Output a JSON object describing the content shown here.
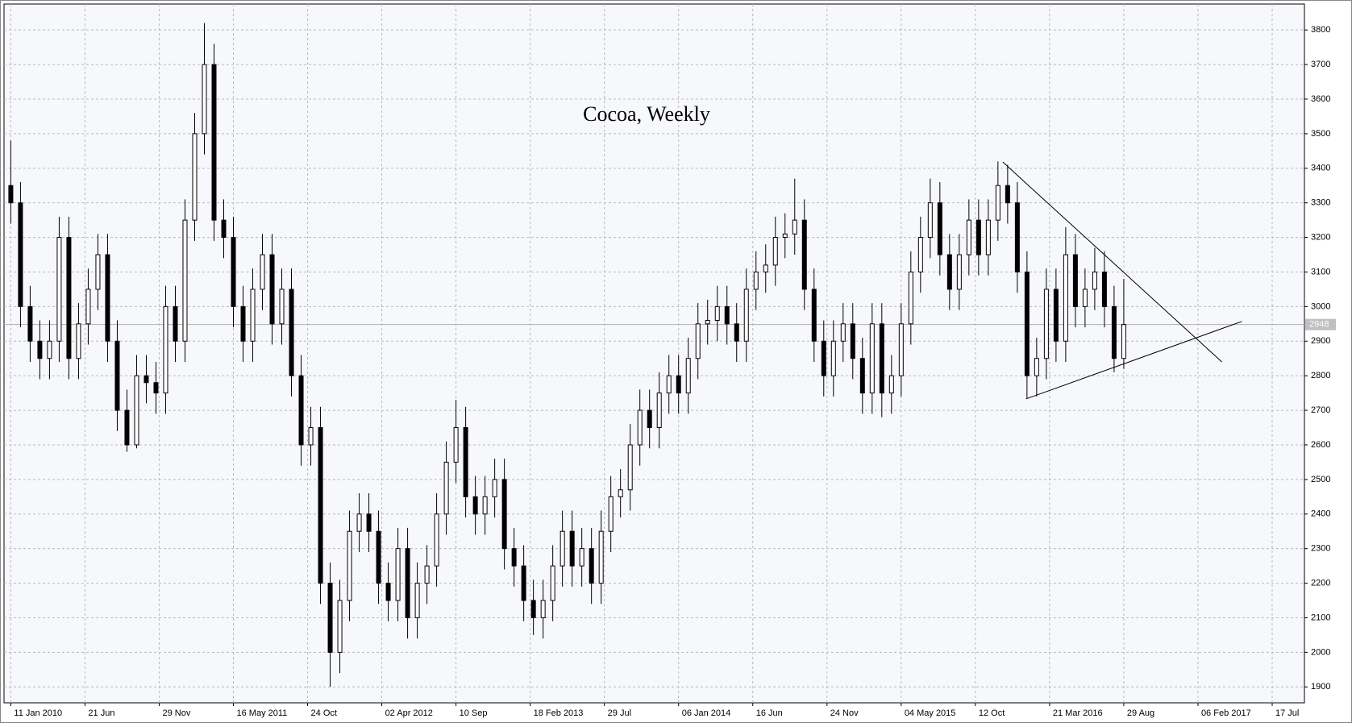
{
  "chart_data": {
    "type": "candlestick",
    "title": "Cocoa, Weekly",
    "x": [
      0,
      3,
      6,
      9,
      12,
      15,
      18,
      21,
      24,
      27,
      30,
      33,
      36,
      39,
      42,
      45,
      48,
      51,
      54,
      57,
      60,
      63,
      66,
      69,
      72,
      75,
      78,
      81,
      84,
      87,
      90,
      93,
      96,
      99,
      102,
      105,
      108,
      111,
      114,
      117,
      120,
      123,
      126,
      129,
      132,
      135,
      138,
      141,
      144,
      147,
      150,
      153,
      156,
      159,
      162,
      165,
      168,
      171,
      174,
      177,
      180,
      183,
      186,
      189,
      192,
      195,
      198,
      201,
      204,
      207,
      210,
      213,
      216,
      219,
      222,
      225,
      228,
      231,
      234,
      237,
      240,
      243,
      246,
      249,
      252,
      255,
      258,
      261,
      264,
      267,
      270,
      273,
      276,
      279,
      282,
      285,
      288,
      291,
      294,
      297,
      300,
      303,
      306,
      309,
      312,
      315,
      318,
      321,
      324,
      327,
      330,
      333,
      336,
      339,
      342,
      345
    ],
    "open": [
      3350,
      3300,
      3000,
      2900,
      2850,
      2900,
      3200,
      2850,
      2950,
      3050,
      3150,
      2900,
      2700,
      2600,
      2800,
      2780,
      2750,
      3000,
      2900,
      3250,
      3500,
      3700,
      3250,
      3200,
      3000,
      2900,
      3050,
      3150,
      2950,
      3050,
      2800,
      2600,
      2650,
      2200,
      2000,
      2150,
      2350,
      2400,
      2350,
      2200,
      2150,
      2300,
      2100,
      2200,
      2250,
      2400,
      2550,
      2650,
      2450,
      2400,
      2450,
      2500,
      2300,
      2250,
      2150,
      2100,
      2150,
      2250,
      2350,
      2250,
      2300,
      2200,
      2350,
      2450,
      2470,
      2600,
      2700,
      2650,
      2750,
      2800,
      2750,
      2850,
      2950,
      2960,
      3000,
      2950,
      2900,
      3050,
      3100,
      3120,
      3200,
      3210,
      3250,
      3050,
      2900,
      2800,
      2900,
      2950,
      2850,
      2750,
      2950,
      2750,
      2800,
      2950,
      3100,
      3200,
      3300,
      3150,
      3050,
      3150,
      3250,
      3150,
      3250,
      3350,
      3300,
      3100,
      2800,
      2850,
      3050,
      2900,
      3150,
      3000,
      3050,
      3100,
      3000,
      2850
    ],
    "high": [
      3480,
      3360,
      3060,
      2960,
      2960,
      3260,
      3260,
      3010,
      3110,
      3210,
      3210,
      2960,
      2760,
      2860,
      2860,
      2840,
      3060,
      3060,
      3310,
      3560,
      3820,
      3760,
      3310,
      3260,
      3060,
      3110,
      3210,
      3210,
      3110,
      3110,
      2860,
      2710,
      2710,
      2260,
      2210,
      2410,
      2460,
      2460,
      2410,
      2260,
      2360,
      2360,
      2260,
      2310,
      2460,
      2610,
      2730,
      2710,
      2510,
      2510,
      2560,
      2560,
      2360,
      2310,
      2210,
      2210,
      2310,
      2410,
      2410,
      2360,
      2360,
      2410,
      2510,
      2530,
      2660,
      2760,
      2760,
      2810,
      2860,
      2860,
      2910,
      3010,
      3020,
      3060,
      3060,
      3010,
      3110,
      3160,
      3180,
      3260,
      3270,
      3370,
      3310,
      3110,
      2960,
      2960,
      3010,
      3010,
      2910,
      3010,
      3010,
      2860,
      3010,
      3160,
      3260,
      3370,
      3360,
      3210,
      3210,
      3310,
      3310,
      3310,
      3420,
      3410,
      3360,
      3160,
      2910,
      3110,
      3110,
      3230,
      3210,
      3110,
      3170,
      3160,
      3060,
      3080
    ],
    "low": [
      3240,
      2940,
      2840,
      2790,
      2790,
      2840,
      2790,
      2790,
      2890,
      2990,
      2840,
      2640,
      2580,
      2590,
      2720,
      2690,
      2690,
      2840,
      2840,
      3190,
      3440,
      3190,
      3140,
      2940,
      2840,
      2840,
      2990,
      2890,
      2890,
      2740,
      2540,
      2540,
      2140,
      1900,
      1940,
      2090,
      2290,
      2290,
      2140,
      2090,
      2090,
      2040,
      2040,
      2140,
      2190,
      2340,
      2490,
      2390,
      2340,
      2340,
      2390,
      2240,
      2190,
      2090,
      2050,
      2040,
      2090,
      2190,
      2190,
      2190,
      2140,
      2140,
      2290,
      2390,
      2410,
      2540,
      2590,
      2590,
      2690,
      2690,
      2690,
      2790,
      2890,
      2900,
      2890,
      2840,
      2840,
      2990,
      3040,
      3060,
      3140,
      3150,
      2990,
      2840,
      2740,
      2740,
      2840,
      2790,
      2690,
      2690,
      2680,
      2690,
      2740,
      2890,
      3040,
      3140,
      3090,
      2990,
      2990,
      3090,
      3090,
      3090,
      3190,
      3240,
      3040,
      2735,
      2740,
      2790,
      2840,
      2840,
      2940,
      2940,
      2990,
      2940,
      2810,
      2820
    ],
    "close": [
      3300,
      3000,
      2900,
      2850,
      2900,
      3200,
      2850,
      2950,
      3050,
      3150,
      2900,
      2700,
      2600,
      2800,
      2780,
      2750,
      3000,
      2900,
      3250,
      3500,
      3700,
      3250,
      3200,
      3000,
      2900,
      3050,
      3150,
      2950,
      3050,
      2800,
      2600,
      2650,
      2200,
      2000,
      2150,
      2350,
      2400,
      2350,
      2200,
      2150,
      2300,
      2100,
      2200,
      2250,
      2400,
      2550,
      2650,
      2450,
      2400,
      2450,
      2500,
      2300,
      2250,
      2150,
      2100,
      2150,
      2250,
      2350,
      2250,
      2300,
      2200,
      2350,
      2450,
      2470,
      2600,
      2700,
      2650,
      2750,
      2800,
      2750,
      2850,
      2950,
      2960,
      3000,
      2950,
      2900,
      3050,
      3100,
      3120,
      3200,
      3210,
      3250,
      3050,
      2900,
      2800,
      2900,
      2950,
      2850,
      2750,
      2950,
      2750,
      2800,
      2950,
      3100,
      3200,
      3300,
      3150,
      3050,
      3150,
      3250,
      3150,
      3250,
      3350,
      3300,
      3100,
      2800,
      2850,
      3050,
      2900,
      3150,
      3000,
      3050,
      3100,
      3000,
      2850,
      2948
    ],
    "xlim": [
      -2.1,
      401
    ],
    "ylim": [
      1854,
      3875
    ],
    "xticks": [
      {
        "value": 0,
        "label": "11 Jan 2010"
      },
      {
        "value": 23,
        "label": "21 Jun"
      },
      {
        "value": 46,
        "label": "29 Nov"
      },
      {
        "value": 69,
        "label": "16 May 2011"
      },
      {
        "value": 92,
        "label": "24 Oct"
      },
      {
        "value": 115,
        "label": "02 Apr 2012"
      },
      {
        "value": 138,
        "label": "10 Sep"
      },
      {
        "value": 161,
        "label": "18 Feb 2013"
      },
      {
        "value": 184,
        "label": "29 Jul"
      },
      {
        "value": 207,
        "label": "06 Jan 2014"
      },
      {
        "value": 230,
        "label": "16 Jun"
      },
      {
        "value": 253,
        "label": "24 Nov"
      },
      {
        "value": 276,
        "label": "04 May 2015"
      },
      {
        "value": 299,
        "label": "12 Oct"
      },
      {
        "value": 322,
        "label": "21 Mar 2016"
      },
      {
        "value": 345,
        "label": "29 Aug"
      },
      {
        "value": 368,
        "label": "06 Feb 2017"
      },
      {
        "value": 391,
        "label": "17 Jul"
      }
    ],
    "yticks": [
      1900,
      2000,
      2100,
      2200,
      2300,
      2400,
      2500,
      2600,
      2700,
      2800,
      2900,
      3000,
      3100,
      3200,
      3300,
      3400,
      3500,
      3600,
      3700,
      3800
    ],
    "grid": true,
    "trendlines": [
      {
        "x": [
          307.5,
          375.4
        ],
        "y": [
          3418,
          2840
        ]
      },
      {
        "x": [
          314.7,
          381.6
        ],
        "y": [
          2733,
          2957
        ]
      }
    ]
  }
}
